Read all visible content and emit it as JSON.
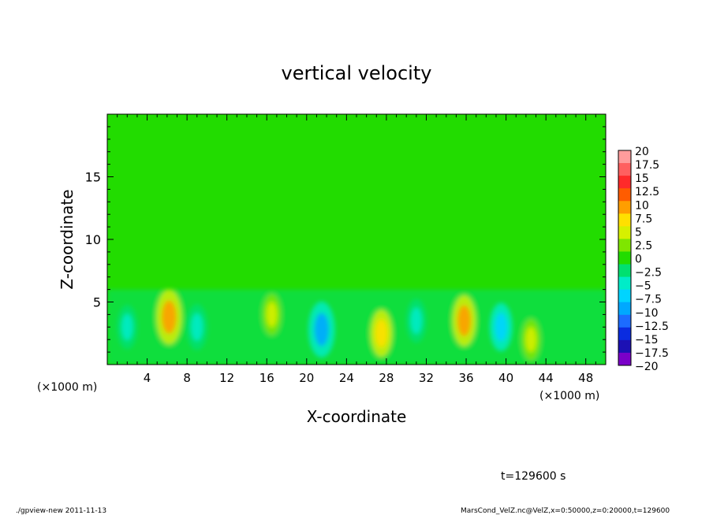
{
  "chart_data": {
    "type": "heatmap",
    "title": "vertical velocity",
    "xlabel": "X-coordinate",
    "ylabel": "Z-coordinate",
    "x_unit_left": "(×1000 m)",
    "x_unit_right": "(×1000 m)",
    "x_ticks": [
      "4",
      "8",
      "12",
      "16",
      "20",
      "24",
      "28",
      "32",
      "36",
      "40",
      "44",
      "48"
    ],
    "x_tick_values": [
      4,
      8,
      12,
      16,
      20,
      24,
      28,
      32,
      36,
      40,
      44,
      48
    ],
    "y_ticks": [
      "5",
      "10",
      "15"
    ],
    "y_tick_values": [
      5,
      10,
      15
    ],
    "xlim": [
      0,
      50
    ],
    "ylim": [
      0,
      20
    ],
    "colorbar": {
      "labels": [
        "20",
        "17.5",
        "15",
        "12.5",
        "10",
        "7.5",
        "5",
        "2.5",
        "0",
        "−2.5",
        "−5",
        "−7.5",
        "−10",
        "−12.5",
        "−15",
        "−17.5",
        "−20"
      ],
      "colors": [
        "#ff9c9c",
        "#ff6060",
        "#ff2a2a",
        "#ff5c00",
        "#ff9e00",
        "#ffe000",
        "#d7f000",
        "#7fe600",
        "#22dc00",
        "#00e070",
        "#00ecc8",
        "#00d4ff",
        "#00a8ff",
        "#1c6cff",
        "#0a2ce0",
        "#1c10b4",
        "#7a00c8"
      ]
    },
    "background_level": "0",
    "features": [
      {
        "x": 6.2,
        "z": 3.8,
        "value": 11,
        "note": "strongest updraft"
      },
      {
        "x": 21.5,
        "z": 2.8,
        "value": -11
      },
      {
        "x": 27.5,
        "z": 2.5,
        "value": 7
      },
      {
        "x": 35.8,
        "z": 3.5,
        "value": 9
      },
      {
        "x": 16.5,
        "z": 4.0,
        "value": 4
      },
      {
        "x": 9.0,
        "z": 3.0,
        "value": -6
      },
      {
        "x": 39.5,
        "z": 3.0,
        "value": -7
      },
      {
        "x": 42.5,
        "z": 2.0,
        "value": 4
      },
      {
        "x": 2.0,
        "z": 3.0,
        "value": -5
      },
      {
        "x": 31.0,
        "z": 3.5,
        "value": -5
      }
    ]
  },
  "time_label": "t=129600 s",
  "footer_left": "./gpview-new  2011-11-13",
  "footer_right": "MarsCond_VelZ.nc@VelZ,x=0:50000,z=0:20000,t=129600"
}
